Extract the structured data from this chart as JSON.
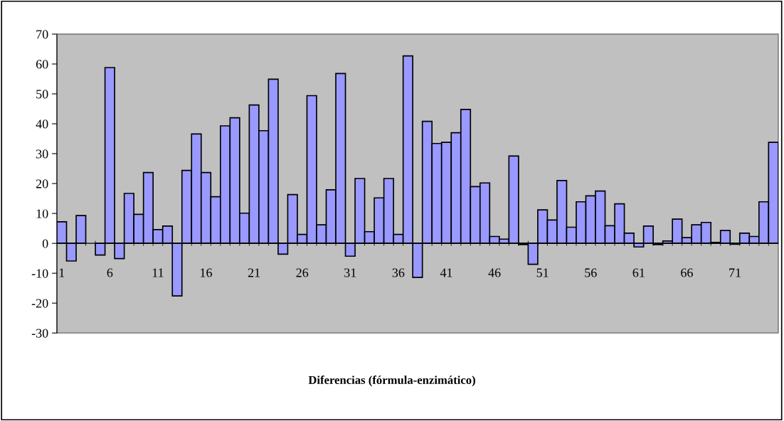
{
  "chart_data": {
    "type": "bar",
    "xlabel": "Diferencias (fórmula-enzimático)",
    "categories": [
      "1",
      null,
      null,
      null,
      null,
      "6",
      null,
      null,
      null,
      null,
      "11",
      null,
      null,
      null,
      null,
      "16",
      null,
      null,
      null,
      null,
      "21",
      null,
      null,
      null,
      null,
      "26",
      null,
      null,
      null,
      null,
      "31",
      null,
      null,
      null,
      null,
      "36",
      null,
      null,
      null,
      null,
      "41",
      null,
      null,
      null,
      null,
      "46",
      null,
      null,
      null,
      null,
      "51",
      null,
      null,
      null,
      null,
      "56",
      null,
      null,
      null,
      null,
      "61",
      null,
      null,
      null,
      null,
      "66",
      null,
      null,
      null,
      null,
      "71",
      null,
      null,
      null,
      null
    ],
    "values": [
      7.2,
      -5.9,
      9.3,
      null,
      -3.9,
      58.8,
      -5.1,
      16.7,
      9.7,
      23.7,
      4.6,
      5.8,
      -17.6,
      24.4,
      36.6,
      23.7,
      15.6,
      39.3,
      42.0,
      10.1,
      46.3,
      37.7,
      54.9,
      -3.6,
      16.3,
      3.0,
      49.4,
      6.2,
      17.9,
      56.8,
      -4.3,
      21.7,
      3.9,
      15.2,
      21.7,
      3.0,
      62.7,
      -11.4,
      40.8,
      33.4,
      33.8,
      37.0,
      44.8,
      19.0,
      20.2,
      2.3,
      1.4,
      29.2,
      -0.4,
      -7.0,
      11.2,
      7.8,
      21.0,
      5.4,
      13.9,
      15.9,
      17.5,
      5.9,
      13.2,
      3.4,
      -1.2,
      5.8,
      -0.4,
      0.8,
      8.1,
      1.9,
      6.2,
      7.0,
      0.3,
      4.3,
      -0.3,
      3.4,
      2.3,
      13.9,
      33.8
    ],
    "color": "#9999ff",
    "ylim": [
      -30,
      70
    ],
    "yticks": [
      -30,
      -20,
      -10,
      0,
      10,
      20,
      30,
      40,
      50,
      60,
      70
    ],
    "grid": false,
    "legend": false
  }
}
